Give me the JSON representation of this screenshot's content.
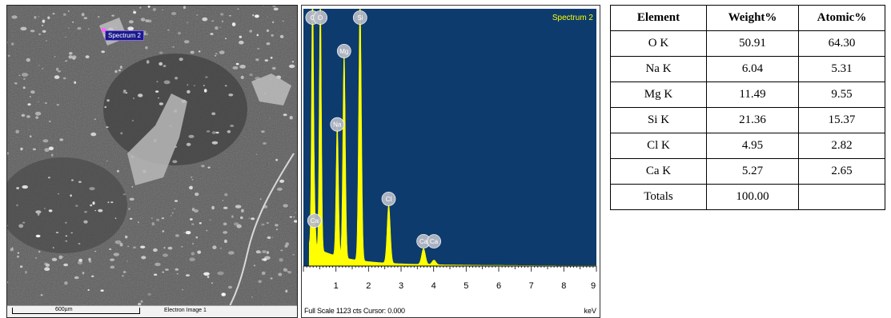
{
  "sem_image": {
    "spectrum_tag": "Spectrum 2",
    "scale_label": "600µm",
    "image_label": "Electron Image 1"
  },
  "chart_data": {
    "type": "line",
    "title": "Spectrum 2",
    "xlabel": "keV",
    "xlim": [
      0,
      9
    ],
    "ylim": [
      0,
      1123
    ],
    "x_ticks": [
      1,
      2,
      3,
      4,
      5,
      6,
      7,
      8,
      9
    ],
    "footer": "Full Scale 1123 cts Cursor: 0.000",
    "colors": {
      "background": "#0d3b6e",
      "spectrum": "#ffff00",
      "peak_label_fill": "#b8bcc8"
    },
    "peaks": [
      {
        "label": "Ca",
        "kev": 0.34,
        "counts": 160
      },
      {
        "label": "C",
        "kev": 0.28,
        "counts": 1123
      },
      {
        "label": "O",
        "kev": 0.52,
        "counts": 1123
      },
      {
        "label": "Na",
        "kev": 1.04,
        "counts": 580
      },
      {
        "label": "Mg",
        "kev": 1.25,
        "counts": 900
      },
      {
        "label": "Si",
        "kev": 1.74,
        "counts": 1123
      },
      {
        "label": "Cl",
        "kev": 2.62,
        "counts": 255
      },
      {
        "label": "Ca",
        "kev": 3.69,
        "counts": 70
      },
      {
        "label": "Ca",
        "kev": 4.01,
        "counts": 20
      }
    ]
  },
  "table": {
    "headers": [
      "Element",
      "Weight%",
      "Atomic%"
    ],
    "rows": [
      [
        "O K",
        "50.91",
        "64.30"
      ],
      [
        "Na K",
        "6.04",
        "5.31"
      ],
      [
        "Mg K",
        "11.49",
        "9.55"
      ],
      [
        "Si K",
        "21.36",
        "15.37"
      ],
      [
        "Cl K",
        "4.95",
        "2.82"
      ],
      [
        "Ca K",
        "5.27",
        "2.65"
      ],
      [
        "Totals",
        "100.00",
        ""
      ]
    ]
  }
}
